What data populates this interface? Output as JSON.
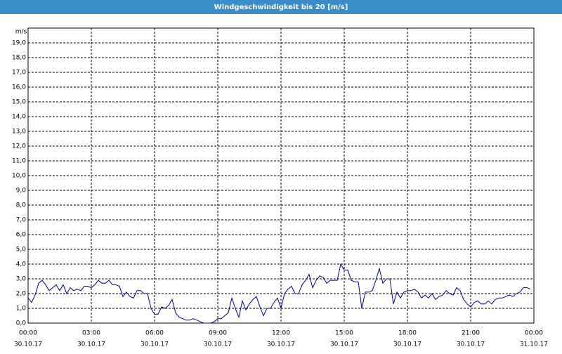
{
  "chart_data": {
    "type": "line",
    "title": "Windgeschwindigkeit bis 20 [m/s]",
    "y_label": "m/s",
    "x": [
      0,
      10,
      20,
      30,
      40,
      50,
      60,
      70,
      80,
      90,
      100,
      110,
      120,
      130,
      140,
      150,
      160,
      170,
      180,
      190,
      200,
      210,
      220,
      230,
      240,
      250,
      260,
      270,
      280,
      290,
      300,
      310,
      320,
      330,
      340,
      350,
      360,
      370,
      380,
      390,
      400,
      410,
      420,
      430,
      440,
      450,
      460,
      470,
      480,
      490,
      500,
      510,
      520,
      530,
      540,
      550,
      560,
      570,
      580,
      590,
      600,
      610,
      620,
      630,
      640,
      650,
      660,
      670,
      680,
      690,
      700,
      710,
      720,
      730,
      740,
      750,
      760,
      770,
      780,
      790,
      800,
      810,
      820,
      830,
      840,
      850,
      860,
      870,
      880,
      890,
      900,
      910,
      920,
      930,
      940,
      950,
      960,
      970,
      980,
      990,
      1000,
      1010,
      1020,
      1030,
      1040,
      1050,
      1060,
      1070,
      1080,
      1090,
      1100,
      1110,
      1120,
      1130,
      1140,
      1150,
      1160,
      1170,
      1180,
      1190,
      1200,
      1210,
      1220,
      1230,
      1240,
      1250,
      1260,
      1270,
      1280,
      1290,
      1300,
      1310,
      1320,
      1330,
      1340,
      1350,
      1360,
      1370,
      1380,
      1390,
      1400,
      1410,
      1420,
      1430
    ],
    "series": [
      {
        "color": "#00008b",
        "values": [
          1.7,
          1.4,
          1.9,
          2.7,
          2.9,
          2.6,
          2.2,
          2.4,
          2.6,
          2.2,
          2.6,
          2.0,
          2.4,
          2.2,
          2.3,
          2.2,
          2.5,
          2.5,
          2.4,
          2.6,
          2.9,
          2.7,
          2.7,
          2.9,
          2.6,
          2.6,
          2.5,
          1.8,
          2.1,
          1.8,
          1.7,
          2.2,
          2.2,
          2.0,
          2.0,
          1.0,
          0.6,
          0.6,
          1.1,
          1.0,
          1.2,
          1.6,
          0.7,
          0.4,
          0.3,
          0.2,
          0.2,
          0.3,
          0.2,
          0.1,
          0.0,
          0.0,
          0.0,
          0.1,
          0.3,
          0.3,
          0.5,
          0.7,
          1.7,
          1.0,
          0.4,
          1.5,
          0.9,
          1.3,
          1.6,
          1.8,
          1.1,
          0.5,
          1.0,
          1.0,
          1.4,
          1.7,
          1.0,
          2.0,
          2.3,
          2.5,
          2.0,
          2.0,
          2.6,
          2.9,
          3.3,
          2.4,
          2.9,
          3.2,
          3.1,
          2.7,
          2.9,
          2.9,
          2.9,
          4.0,
          3.6,
          3.6,
          2.9,
          2.8,
          2.8,
          1.0,
          2.1,
          2.1,
          2.2,
          2.9,
          3.7,
          2.7,
          3.0,
          3.0,
          1.3,
          2.1,
          1.7,
          2.1,
          2.2,
          2.2,
          2.3,
          2.1,
          1.7,
          1.9,
          1.7,
          2.0,
          1.6,
          1.8,
          1.9,
          2.2,
          2.0,
          1.9,
          2.4,
          2.2,
          1.6,
          1.3,
          1.1,
          1.4,
          1.5,
          1.3,
          1.3,
          1.5,
          1.3,
          1.6,
          1.7,
          1.7,
          1.8,
          1.9,
          1.8,
          2.0,
          2.1,
          2.4,
          2.4,
          2.3
        ]
      }
    ],
    "xlim": [
      0,
      1440
    ],
    "xticks": [
      {
        "value": 0,
        "label": "00:00",
        "date": "30.10.17"
      },
      {
        "value": 180,
        "label": "03:00",
        "date": "30.10.17"
      },
      {
        "value": 360,
        "label": "06:00",
        "date": "30.10.17"
      },
      {
        "value": 540,
        "label": "09:00",
        "date": "30.10.17"
      },
      {
        "value": 720,
        "label": "12:00",
        "date": "30.10.17"
      },
      {
        "value": 900,
        "label": "15:00",
        "date": "30.10.17"
      },
      {
        "value": 1080,
        "label": "18:00",
        "date": "30.10.17"
      },
      {
        "value": 1260,
        "label": "21:00",
        "date": "30.10.17"
      },
      {
        "value": 1440,
        "label": "00:00",
        "date": "31.10.17"
      }
    ],
    "ylim": [
      0,
      20
    ],
    "yticks": [
      {
        "value": 0,
        "label": "0,0"
      },
      {
        "value": 1,
        "label": "1,0"
      },
      {
        "value": 2,
        "label": "2,0"
      },
      {
        "value": 3,
        "label": "3,0"
      },
      {
        "value": 4,
        "label": "4,0"
      },
      {
        "value": 5,
        "label": "5,0"
      },
      {
        "value": 6,
        "label": "6,0"
      },
      {
        "value": 7,
        "label": "7,0"
      },
      {
        "value": 8,
        "label": "8,0"
      },
      {
        "value": 9,
        "label": "9,0"
      },
      {
        "value": 10,
        "label": "10,0"
      },
      {
        "value": 11,
        "label": "11,0"
      },
      {
        "value": 12,
        "label": "12,0"
      },
      {
        "value": 13,
        "label": "13,0"
      },
      {
        "value": 14,
        "label": "14,0"
      },
      {
        "value": 15,
        "label": "15,0"
      },
      {
        "value": 16,
        "label": "16,0"
      },
      {
        "value": 17,
        "label": "17,0"
      },
      {
        "value": 18,
        "label": "18,0"
      },
      {
        "value": 19,
        "label": "19,0"
      }
    ],
    "grid": true
  }
}
